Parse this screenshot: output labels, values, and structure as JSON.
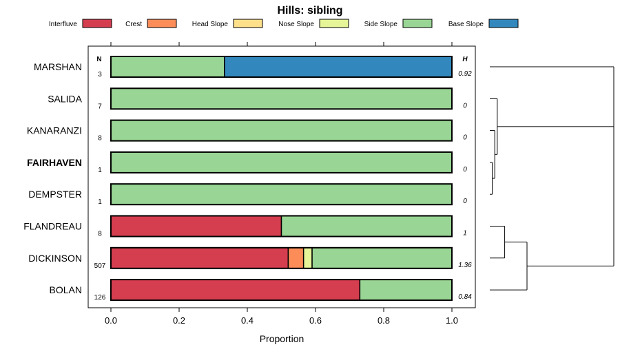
{
  "chart_data": {
    "type": "bar",
    "orientation": "horizontal-stacked",
    "title": "Hills: sibling",
    "xlabel": "Proportion",
    "ylabel": "",
    "xlim": [
      0,
      1
    ],
    "xticks": [
      "0.0",
      "0.2",
      "0.4",
      "0.6",
      "0.8",
      "1.0"
    ],
    "xtick_values": [
      0,
      0.2,
      0.4,
      0.6,
      0.8,
      1.0
    ],
    "n_header": "N",
    "h_header": "H",
    "legend": [
      {
        "name": "Interfluve",
        "color": "#d53e4f"
      },
      {
        "name": "Crest",
        "color": "#fc8d59"
      },
      {
        "name": "Head Slope",
        "color": "#fee08b"
      },
      {
        "name": "Nose Slope",
        "color": "#e6f598"
      },
      {
        "name": "Side Slope",
        "color": "#99d594"
      },
      {
        "name": "Base Slope",
        "color": "#3288bd"
      }
    ],
    "categories": [
      "MARSHAN",
      "SALIDA",
      "KANARANZI",
      "FAIRHAVEN",
      "DEMPSTER",
      "FLANDREAU",
      "DICKINSON",
      "BOLAN"
    ],
    "highlight": "FAIRHAVEN",
    "n_values": [
      "3",
      "7",
      "8",
      "1",
      "1",
      "8",
      "507",
      "126"
    ],
    "h_values": [
      "0.92",
      "0",
      "0",
      "0",
      "0",
      "1",
      "1.36",
      "0.84"
    ],
    "series": [
      {
        "name": "Interfluve",
        "values": [
          0,
          0,
          0,
          0,
          0,
          0.5,
          0.52,
          0.73
        ]
      },
      {
        "name": "Crest",
        "values": [
          0,
          0,
          0,
          0,
          0,
          0,
          0.045,
          0
        ]
      },
      {
        "name": "Head Slope",
        "values": [
          0,
          0,
          0,
          0,
          0,
          0,
          0,
          0
        ]
      },
      {
        "name": "Nose Slope",
        "values": [
          0,
          0,
          0,
          0,
          0,
          0,
          0.025,
          0
        ]
      },
      {
        "name": "Side Slope",
        "values": [
          0.333,
          1,
          1,
          1,
          1,
          0.5,
          0.41,
          0.27
        ]
      },
      {
        "name": "Base Slope",
        "values": [
          0.667,
          0,
          0,
          0,
          0,
          0,
          0,
          0
        ]
      }
    ],
    "dendrogram": {
      "leaves": [
        "MARSHAN",
        "SALIDA",
        "KANARANZI",
        "FAIRHAVEN",
        "DEMPSTER",
        "FLANDREAU",
        "DICKINSON",
        "BOLAN"
      ],
      "merges": [
        {
          "left": "FAIRHAVEN",
          "right": "DEMPSTER",
          "height": 0.02
        },
        {
          "left": "KANARANZI",
          "right": "m0",
          "height": 0.04
        },
        {
          "left": "SALIDA",
          "right": "m1",
          "height": 0.06
        },
        {
          "left": "FLANDREAU",
          "right": "DICKINSON",
          "height": 0.12
        },
        {
          "left": "m3",
          "right": "BOLAN",
          "height": 0.3
        },
        {
          "left": "MARSHAN",
          "right": "m2",
          "height": 1.0
        },
        {
          "left": "m5",
          "right": "m4",
          "height": 1.0
        }
      ]
    }
  }
}
